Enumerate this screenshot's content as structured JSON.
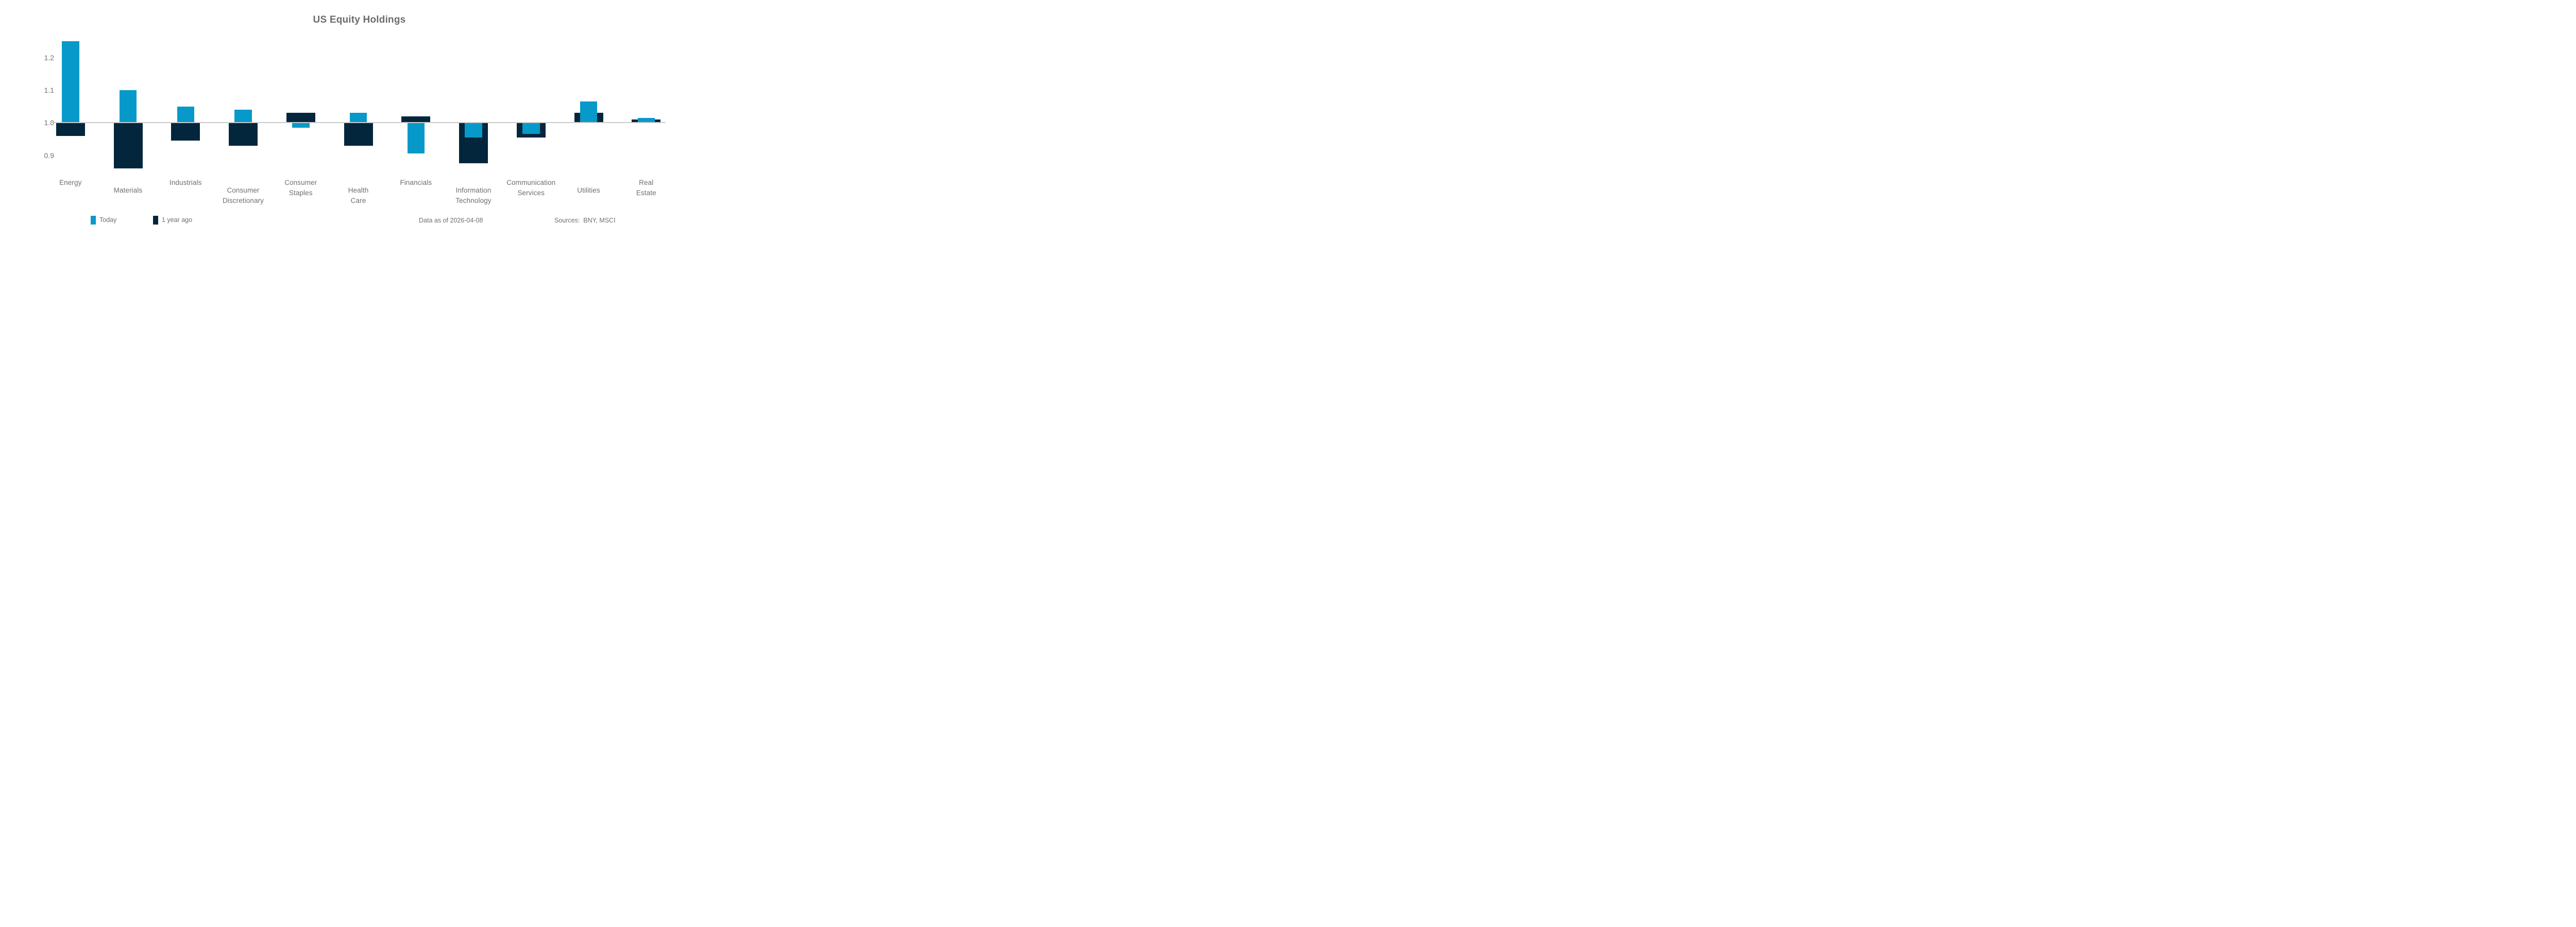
{
  "chart_data": {
    "type": "bar",
    "title": "US Equity Holdings",
    "categories": [
      "Energy",
      "Materials",
      "Industrials",
      "Consumer Discretionary",
      "Consumer Staples",
      "Health Care",
      "Financials",
      "Information Technology",
      "Communication Services",
      "Utilities",
      "Real Estate"
    ],
    "series": [
      {
        "name": "Today",
        "color": "#0799CA",
        "values": [
          1.25,
          1.1,
          1.05,
          1.04,
          0.985,
          1.03,
          0.905,
          0.955,
          0.965,
          1.065,
          1.015
        ]
      },
      {
        "name": "1 year ago",
        "color": "#04263C",
        "values": [
          0.96,
          0.86,
          0.945,
          0.93,
          1.03,
          0.93,
          1.02,
          0.875,
          0.955,
          1.03,
          1.01
        ]
      }
    ],
    "baseline": 1.0,
    "yticks": [
      "0.9",
      "1.0",
      "1.1",
      "1.2"
    ],
    "ytick_values": [
      0.9,
      1.0,
      1.1,
      1.2
    ],
    "ylim": [
      0.85,
      1.27
    ],
    "grid": "baseline-only",
    "legend_position": "bottom-left",
    "bar_layout": "overlapped-centered",
    "xlabel": "",
    "ylabel": ""
  },
  "footer": {
    "data_as_of": "Data as of 2026-04-08",
    "sources": "Sources:  BNY, MSCI"
  },
  "colors": {
    "today": "#0799CA",
    "one_year_ago": "#04263C",
    "baseline_line": "#CBCBCB",
    "text": "#6F6F6F",
    "title": "#6B6B6B",
    "background": "#FFFFFF"
  }
}
